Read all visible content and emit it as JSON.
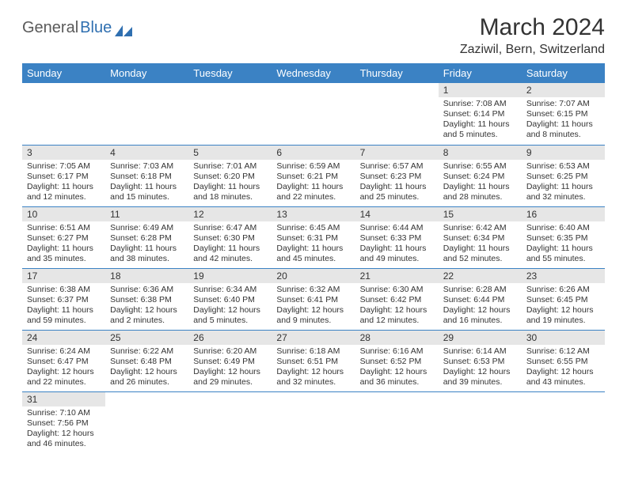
{
  "logo": {
    "text_gray": "General",
    "text_blue": "Blue"
  },
  "title": "March 2024",
  "location": "Zaziwil, Bern, Switzerland",
  "colors": {
    "header_bg": "#3b82c4",
    "header_text": "#ffffff",
    "daynum_bg": "#e6e6e6",
    "row_border": "#3b82c4",
    "logo_gray": "#5a5a5a",
    "logo_blue": "#2f6fb0"
  },
  "weekdays": [
    "Sunday",
    "Monday",
    "Tuesday",
    "Wednesday",
    "Thursday",
    "Friday",
    "Saturday"
  ],
  "weeks": [
    [
      {
        "n": "",
        "sunrise": "",
        "sunset": "",
        "daylight": ""
      },
      {
        "n": "",
        "sunrise": "",
        "sunset": "",
        "daylight": ""
      },
      {
        "n": "",
        "sunrise": "",
        "sunset": "",
        "daylight": ""
      },
      {
        "n": "",
        "sunrise": "",
        "sunset": "",
        "daylight": ""
      },
      {
        "n": "",
        "sunrise": "",
        "sunset": "",
        "daylight": ""
      },
      {
        "n": "1",
        "sunrise": "Sunrise: 7:08 AM",
        "sunset": "Sunset: 6:14 PM",
        "daylight": "Daylight: 11 hours and 5 minutes."
      },
      {
        "n": "2",
        "sunrise": "Sunrise: 7:07 AM",
        "sunset": "Sunset: 6:15 PM",
        "daylight": "Daylight: 11 hours and 8 minutes."
      }
    ],
    [
      {
        "n": "3",
        "sunrise": "Sunrise: 7:05 AM",
        "sunset": "Sunset: 6:17 PM",
        "daylight": "Daylight: 11 hours and 12 minutes."
      },
      {
        "n": "4",
        "sunrise": "Sunrise: 7:03 AM",
        "sunset": "Sunset: 6:18 PM",
        "daylight": "Daylight: 11 hours and 15 minutes."
      },
      {
        "n": "5",
        "sunrise": "Sunrise: 7:01 AM",
        "sunset": "Sunset: 6:20 PM",
        "daylight": "Daylight: 11 hours and 18 minutes."
      },
      {
        "n": "6",
        "sunrise": "Sunrise: 6:59 AM",
        "sunset": "Sunset: 6:21 PM",
        "daylight": "Daylight: 11 hours and 22 minutes."
      },
      {
        "n": "7",
        "sunrise": "Sunrise: 6:57 AM",
        "sunset": "Sunset: 6:23 PM",
        "daylight": "Daylight: 11 hours and 25 minutes."
      },
      {
        "n": "8",
        "sunrise": "Sunrise: 6:55 AM",
        "sunset": "Sunset: 6:24 PM",
        "daylight": "Daylight: 11 hours and 28 minutes."
      },
      {
        "n": "9",
        "sunrise": "Sunrise: 6:53 AM",
        "sunset": "Sunset: 6:25 PM",
        "daylight": "Daylight: 11 hours and 32 minutes."
      }
    ],
    [
      {
        "n": "10",
        "sunrise": "Sunrise: 6:51 AM",
        "sunset": "Sunset: 6:27 PM",
        "daylight": "Daylight: 11 hours and 35 minutes."
      },
      {
        "n": "11",
        "sunrise": "Sunrise: 6:49 AM",
        "sunset": "Sunset: 6:28 PM",
        "daylight": "Daylight: 11 hours and 38 minutes."
      },
      {
        "n": "12",
        "sunrise": "Sunrise: 6:47 AM",
        "sunset": "Sunset: 6:30 PM",
        "daylight": "Daylight: 11 hours and 42 minutes."
      },
      {
        "n": "13",
        "sunrise": "Sunrise: 6:45 AM",
        "sunset": "Sunset: 6:31 PM",
        "daylight": "Daylight: 11 hours and 45 minutes."
      },
      {
        "n": "14",
        "sunrise": "Sunrise: 6:44 AM",
        "sunset": "Sunset: 6:33 PM",
        "daylight": "Daylight: 11 hours and 49 minutes."
      },
      {
        "n": "15",
        "sunrise": "Sunrise: 6:42 AM",
        "sunset": "Sunset: 6:34 PM",
        "daylight": "Daylight: 11 hours and 52 minutes."
      },
      {
        "n": "16",
        "sunrise": "Sunrise: 6:40 AM",
        "sunset": "Sunset: 6:35 PM",
        "daylight": "Daylight: 11 hours and 55 minutes."
      }
    ],
    [
      {
        "n": "17",
        "sunrise": "Sunrise: 6:38 AM",
        "sunset": "Sunset: 6:37 PM",
        "daylight": "Daylight: 11 hours and 59 minutes."
      },
      {
        "n": "18",
        "sunrise": "Sunrise: 6:36 AM",
        "sunset": "Sunset: 6:38 PM",
        "daylight": "Daylight: 12 hours and 2 minutes."
      },
      {
        "n": "19",
        "sunrise": "Sunrise: 6:34 AM",
        "sunset": "Sunset: 6:40 PM",
        "daylight": "Daylight: 12 hours and 5 minutes."
      },
      {
        "n": "20",
        "sunrise": "Sunrise: 6:32 AM",
        "sunset": "Sunset: 6:41 PM",
        "daylight": "Daylight: 12 hours and 9 minutes."
      },
      {
        "n": "21",
        "sunrise": "Sunrise: 6:30 AM",
        "sunset": "Sunset: 6:42 PM",
        "daylight": "Daylight: 12 hours and 12 minutes."
      },
      {
        "n": "22",
        "sunrise": "Sunrise: 6:28 AM",
        "sunset": "Sunset: 6:44 PM",
        "daylight": "Daylight: 12 hours and 16 minutes."
      },
      {
        "n": "23",
        "sunrise": "Sunrise: 6:26 AM",
        "sunset": "Sunset: 6:45 PM",
        "daylight": "Daylight: 12 hours and 19 minutes."
      }
    ],
    [
      {
        "n": "24",
        "sunrise": "Sunrise: 6:24 AM",
        "sunset": "Sunset: 6:47 PM",
        "daylight": "Daylight: 12 hours and 22 minutes."
      },
      {
        "n": "25",
        "sunrise": "Sunrise: 6:22 AM",
        "sunset": "Sunset: 6:48 PM",
        "daylight": "Daylight: 12 hours and 26 minutes."
      },
      {
        "n": "26",
        "sunrise": "Sunrise: 6:20 AM",
        "sunset": "Sunset: 6:49 PM",
        "daylight": "Daylight: 12 hours and 29 minutes."
      },
      {
        "n": "27",
        "sunrise": "Sunrise: 6:18 AM",
        "sunset": "Sunset: 6:51 PM",
        "daylight": "Daylight: 12 hours and 32 minutes."
      },
      {
        "n": "28",
        "sunrise": "Sunrise: 6:16 AM",
        "sunset": "Sunset: 6:52 PM",
        "daylight": "Daylight: 12 hours and 36 minutes."
      },
      {
        "n": "29",
        "sunrise": "Sunrise: 6:14 AM",
        "sunset": "Sunset: 6:53 PM",
        "daylight": "Daylight: 12 hours and 39 minutes."
      },
      {
        "n": "30",
        "sunrise": "Sunrise: 6:12 AM",
        "sunset": "Sunset: 6:55 PM",
        "daylight": "Daylight: 12 hours and 43 minutes."
      }
    ],
    [
      {
        "n": "31",
        "sunrise": "Sunrise: 7:10 AM",
        "sunset": "Sunset: 7:56 PM",
        "daylight": "Daylight: 12 hours and 46 minutes."
      },
      {
        "n": "",
        "sunrise": "",
        "sunset": "",
        "daylight": ""
      },
      {
        "n": "",
        "sunrise": "",
        "sunset": "",
        "daylight": ""
      },
      {
        "n": "",
        "sunrise": "",
        "sunset": "",
        "daylight": ""
      },
      {
        "n": "",
        "sunrise": "",
        "sunset": "",
        "daylight": ""
      },
      {
        "n": "",
        "sunrise": "",
        "sunset": "",
        "daylight": ""
      },
      {
        "n": "",
        "sunrise": "",
        "sunset": "",
        "daylight": ""
      }
    ]
  ]
}
